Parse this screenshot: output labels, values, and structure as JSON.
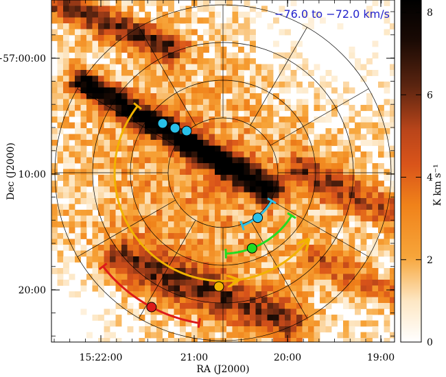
{
  "chart_data": {
    "type": "heatmap",
    "title": "−76.0 to −72.0 km/s",
    "xlabel": "RA (J2000)",
    "ylabel": "Dec (J2000)",
    "colorbar_label": "K km s⁻¹",
    "colorbar_range": [
      0,
      8.3
    ],
    "colorbar_ticks": [
      0,
      2,
      4,
      6,
      8
    ],
    "x_ticks": [
      "15:22:00",
      "21:00",
      "20:00",
      "19:00"
    ],
    "y_ticks": [
      "−57:00:00",
      "10:00",
      "20:00"
    ],
    "colormap": "white-orange-black",
    "overlay": "polar grid: 4 concentric circles, 12 spokes",
    "arcs": [
      {
        "color": "#29c0e8",
        "count": 3
      },
      {
        "color": "#29c0e8",
        "count": 1
      },
      {
        "color": "#22dd22",
        "count": 1
      },
      {
        "color": "#f2b300",
        "count": 1
      },
      {
        "color": "#dd1a1a",
        "count": 1
      }
    ]
  },
  "colors": {
    "title_text": "#2222cc",
    "cyan": "#29c0e8",
    "green": "#22dd22",
    "yellow": "#f2b300",
    "red": "#dd1a1a"
  }
}
